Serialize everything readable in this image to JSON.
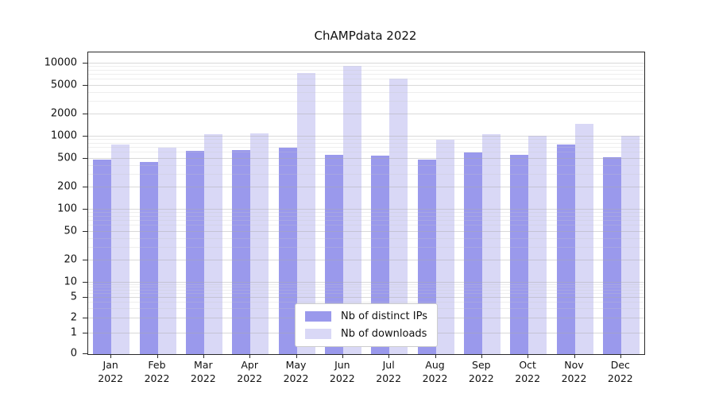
{
  "chart_data": {
    "type": "bar",
    "title": "ChAMPdata 2022",
    "xlabel": "",
    "ylabel": "",
    "yscale": "symlog",
    "ylim": [
      0,
      10000
    ],
    "grid": true,
    "legend_position": "lower center",
    "yticks": [
      0,
      1,
      2,
      5,
      10,
      20,
      50,
      100,
      200,
      500,
      1000,
      2000,
      5000,
      10000
    ],
    "categories": [
      "Jan 2022",
      "Feb 2022",
      "Mar 2022",
      "Apr 2022",
      "May 2022",
      "Jun 2022",
      "Jul 2022",
      "Aug 2022",
      "Sep 2022",
      "Oct 2022",
      "Nov 2022",
      "Dec 2022"
    ],
    "series": [
      {
        "name": "Nb of distinct IPs",
        "color": "#9a99ec",
        "values": [
          480,
          450,
          640,
          650,
          700,
          560,
          545,
          480,
          610,
          560,
          780,
          520
        ]
      },
      {
        "name": "Nb of downloads",
        "color": "#d9d8f6",
        "values": [
          780,
          700,
          1080,
          1100,
          7500,
          9200,
          6200,
          900,
          1080,
          1020,
          1480,
          1020
        ]
      }
    ]
  }
}
